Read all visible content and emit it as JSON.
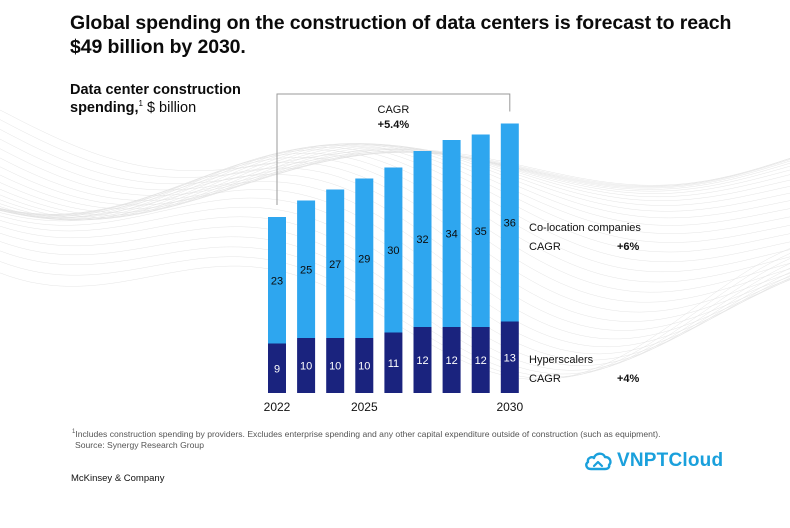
{
  "title": "Global spending on the construction of data centers is forecast to reach $49 billion by 2030.",
  "subtitle": {
    "bold": "Data center construction spending,",
    "footnote_mark": "1",
    "unit": " $ billion"
  },
  "chart_data": {
    "type": "bar",
    "stacked": true,
    "categories": [
      "2022",
      "2023",
      "2024",
      "2025",
      "2026",
      "2027",
      "2028",
      "2029",
      "2030"
    ],
    "x_tick_labels": [
      "2022",
      "",
      "",
      "2025",
      "",
      "",
      "",
      "",
      "2030"
    ],
    "series": [
      {
        "name": "Hyperscalers",
        "color": "#1a237e",
        "values": [
          9,
          10,
          10,
          10,
          11,
          12,
          12,
          12,
          13
        ],
        "cagr_label": "CAGR",
        "cagr_value": "+4%"
      },
      {
        "name": "Co-location companies",
        "color": "#2ea6ef",
        "values": [
          23,
          25,
          27,
          29,
          30,
          32,
          34,
          35,
          36
        ],
        "cagr_label": "CAGR",
        "cagr_value": "+6%"
      }
    ],
    "total_cagr": {
      "label": "CAGR",
      "value": "+5.4%"
    },
    "ylim": [
      0,
      49
    ]
  },
  "footnote": "Includes construction spending by providers. Excludes enterprise spending and any other capital expenditure outside of construction (such as equipment).",
  "footnote_mark": "1",
  "source": "Source: Synergy Research Group",
  "publisher": "McKinsey & Company",
  "logo": {
    "text": "VNPTCloud",
    "color": "#1aa0dc"
  }
}
